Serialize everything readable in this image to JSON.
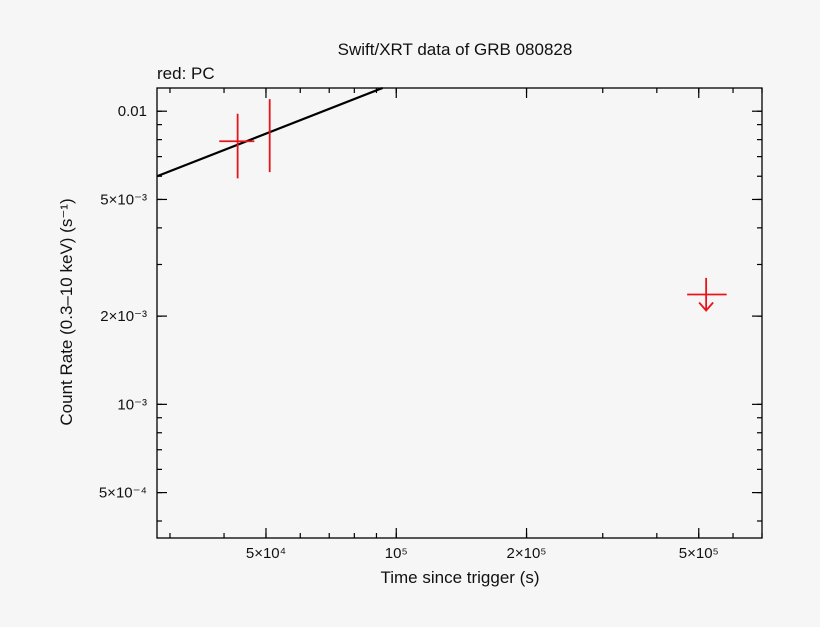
{
  "chart_data": {
    "type": "scatter",
    "title": "Swift/XRT data of GRB 080828",
    "subtitle": "red: PC",
    "xlabel": "Time since trigger (s)",
    "ylabel": "Count Rate (0.3–10 keV) (s⁻¹)",
    "xscale": "log",
    "yscale": "log",
    "xlim": [
      28000,
      700000
    ],
    "ylim": [
      0.00035,
      0.012
    ],
    "x_tick_labels": [
      {
        "value": 50000,
        "label": "5×10⁴"
      },
      {
        "value": 100000,
        "label": "10⁵"
      },
      {
        "value": 200000,
        "label": "2×10⁵"
      },
      {
        "value": 500000,
        "label": "5×10⁵"
      }
    ],
    "y_tick_labels": [
      {
        "value": 0.01,
        "label": "0.01"
      },
      {
        "value": 0.005,
        "label": "5×10⁻³"
      },
      {
        "value": 0.002,
        "label": "2×10⁻³"
      },
      {
        "value": 0.001,
        "label": "10⁻³"
      },
      {
        "value": 0.0005,
        "label": "5×10⁻⁴"
      }
    ],
    "series": [
      {
        "name": "PC",
        "color": "#e8141c",
        "points": [
          {
            "x": 43000,
            "y": 0.0079,
            "xerr": [
              39000,
              47000
            ],
            "yerr": [
              0.0059,
              0.0098
            ]
          },
          {
            "x": 51000,
            "y": 0.0085,
            "xerr": [
              51000,
              51000
            ],
            "yerr": [
              0.0062,
              0.011
            ]
          }
        ],
        "upper_limits": [
          {
            "x": 520000,
            "y": 0.00237,
            "xerr": [
              470000,
              580000
            ],
            "top": 0.0027
          }
        ]
      }
    ],
    "model_line": {
      "color": "#000000",
      "points": [
        [
          28000,
          0.006
        ],
        [
          93000,
          0.012
        ]
      ]
    }
  }
}
